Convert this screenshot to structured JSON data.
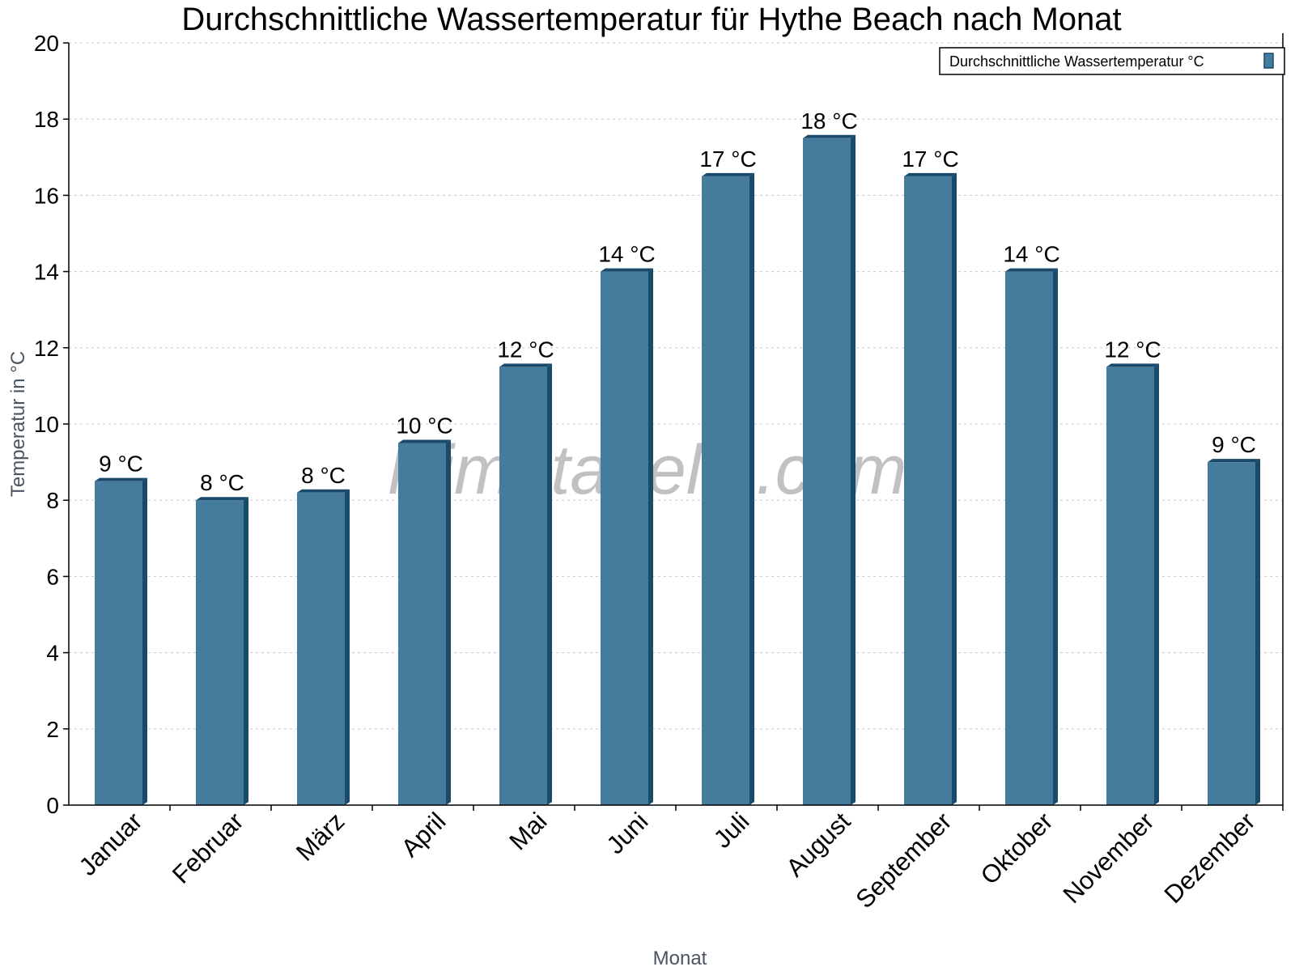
{
  "chart_data": {
    "type": "bar",
    "title": "Durchschnittliche Wassertemperatur für Hythe Beach nach Monat",
    "xlabel": "Monat",
    "ylabel": "Temperatur in °C",
    "ylim": [
      0,
      20
    ],
    "yticks": [
      0,
      2,
      4,
      6,
      8,
      10,
      12,
      14,
      16,
      18,
      20
    ],
    "grid": true,
    "legend_position": "top-right",
    "categories": [
      "Januar",
      "Februar",
      "März",
      "April",
      "Mai",
      "Juni",
      "Juli",
      "August",
      "September",
      "Oktober",
      "November",
      "Dezember"
    ],
    "series": [
      {
        "name": "Durchschnittliche Wassertemperatur °C",
        "color": "#457b9d",
        "values": [
          8.5,
          8.0,
          8.2,
          9.5,
          11.5,
          14.0,
          16.5,
          17.5,
          16.5,
          14.0,
          11.5,
          9.0
        ],
        "labels": [
          "9 °C",
          "8 °C",
          "8 °C",
          "10 °C",
          "12 °C",
          "14 °C",
          "17 °C",
          "18 °C",
          "17 °C",
          "14 °C",
          "12 °C",
          "9 °C"
        ]
      }
    ],
    "watermark": "klimatabelle.com"
  }
}
